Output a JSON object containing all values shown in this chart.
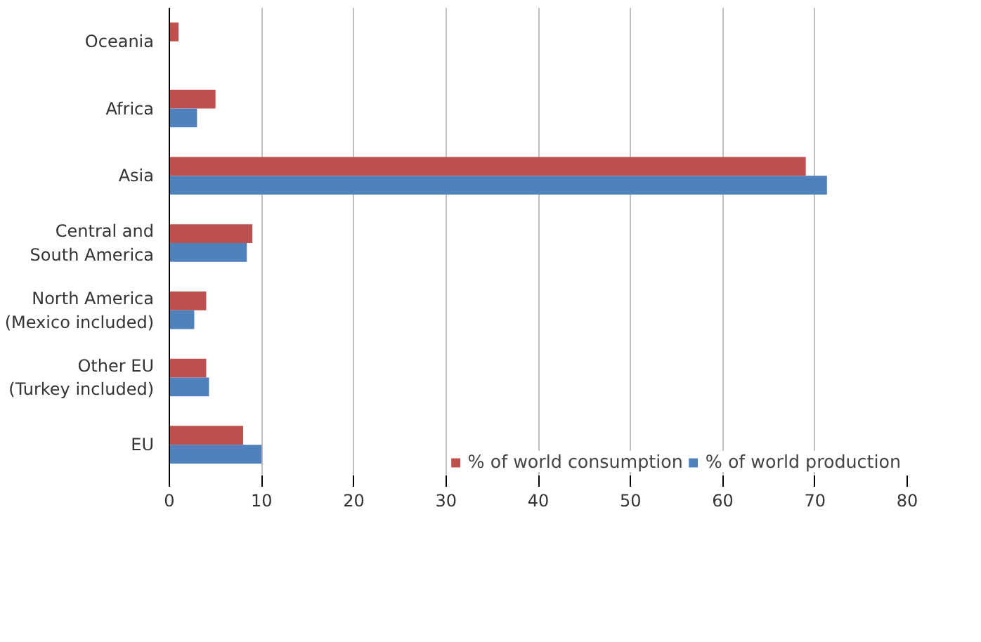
{
  "chart_data": {
    "type": "bar",
    "orientation": "horizontal",
    "categories": [
      "Oceania",
      "Africa",
      "Asia",
      "Central and\nSouth America",
      "North America\n(Mexico included)",
      "Other EU\n(Turkey included)",
      "EU"
    ],
    "series": [
      {
        "name": "% of world consumption",
        "color": "#c0504d",
        "values": [
          1,
          5,
          69,
          9,
          4,
          4,
          8
        ]
      },
      {
        "name": "% of world production",
        "color": "#4f81bd",
        "values": [
          null,
          3,
          71.3,
          8.4,
          2.7,
          4.3,
          10
        ]
      }
    ],
    "xlim": [
      0,
      80
    ],
    "xticks": [
      0,
      10,
      20,
      30,
      40,
      50,
      60,
      70,
      80
    ],
    "grid": "x",
    "legend": "bottom"
  }
}
